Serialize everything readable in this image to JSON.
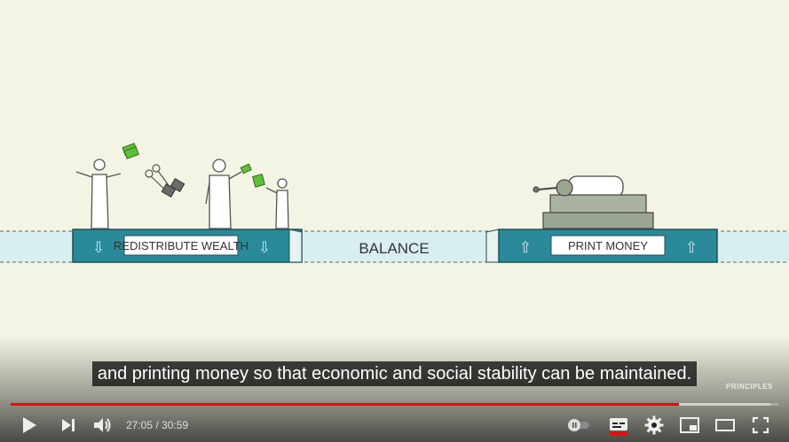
{
  "scene": {
    "left_label": "REDISTRIBUTE WEALTH",
    "center_label": "BALANCE",
    "right_label": "PRINT MONEY",
    "arrow_down": "⇩",
    "arrow_up": "⇧"
  },
  "caption": "and printing money so that economic and social stability can be maintained.",
  "watermark": "PRINCIPLES",
  "player": {
    "current_time": "27:05",
    "separator": " / ",
    "duration": "30:59",
    "progress_played": 0.87,
    "progress_loaded": 0.99,
    "autoplay_on": false,
    "colors": {
      "accent": "#ff0000",
      "scene_bg": "#f3f4e4",
      "teal": "#2a8a99"
    },
    "icons": [
      "play-icon",
      "next-icon",
      "volume-icon",
      "autoplay-toggle-icon",
      "subtitles-icon",
      "settings-icon",
      "miniplayer-icon",
      "theater-mode-icon",
      "fullscreen-icon"
    ]
  }
}
